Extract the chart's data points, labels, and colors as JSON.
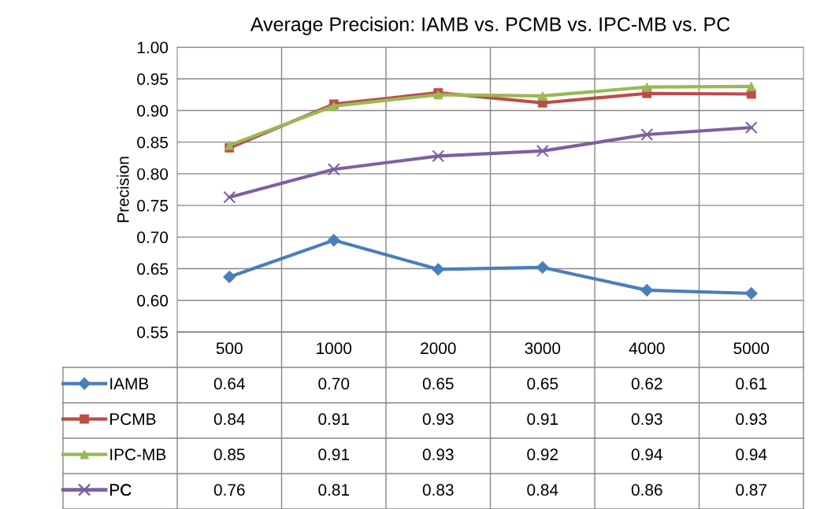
{
  "chart_data": {
    "type": "line",
    "title": "Average Precision: IAMB vs. PCMB vs. IPC-MB vs. PC",
    "ylabel": "Precision",
    "categories": [
      "500",
      "1000",
      "2000",
      "3000",
      "4000",
      "5000"
    ],
    "series": [
      {
        "name": "IAMB",
        "color": "#4a7ebb",
        "marker": "diamond",
        "values": [
          0.637,
          0.695,
          0.649,
          0.652,
          0.616,
          0.611
        ],
        "value_labels": [
          "0.64",
          "0.70",
          "0.65",
          "0.65",
          "0.62",
          "0.61"
        ]
      },
      {
        "name": "PCMB",
        "color": "#be4b48",
        "marker": "square",
        "values": [
          0.841,
          0.91,
          0.928,
          0.912,
          0.927,
          0.926
        ],
        "value_labels": [
          "0.84",
          "0.91",
          "0.93",
          "0.91",
          "0.93",
          "0.93"
        ]
      },
      {
        "name": "IPC-MB",
        "color": "#98b954",
        "marker": "triangle",
        "values": [
          0.845,
          0.907,
          0.925,
          0.923,
          0.937,
          0.938
        ],
        "value_labels": [
          "0.85",
          "0.91",
          "0.93",
          "0.92",
          "0.94",
          "0.94"
        ]
      },
      {
        "name": "PC",
        "color": "#7d60a0",
        "marker": "cross",
        "values": [
          0.763,
          0.807,
          0.828,
          0.836,
          0.862,
          0.873
        ],
        "value_labels": [
          "0.76",
          "0.81",
          "0.83",
          "0.84",
          "0.86",
          "0.87"
        ]
      }
    ],
    "ylim": [
      0.55,
      1.0
    ],
    "yticks": [
      {
        "value": 0.55,
        "label": "0.55"
      },
      {
        "value": 0.6,
        "label": "0.60"
      },
      {
        "value": 0.65,
        "label": "0.65"
      },
      {
        "value": 0.7,
        "label": "0.70"
      },
      {
        "value": 0.75,
        "label": "0.75"
      },
      {
        "value": 0.8,
        "label": "0.80"
      },
      {
        "value": 0.85,
        "label": "0.85"
      },
      {
        "value": 0.9,
        "label": "0.90"
      },
      {
        "value": 0.95,
        "label": "0.95"
      },
      {
        "value": 1.0,
        "label": "1.00"
      }
    ],
    "grid": true,
    "legend": "bottom left",
    "line_style": "solid"
  }
}
